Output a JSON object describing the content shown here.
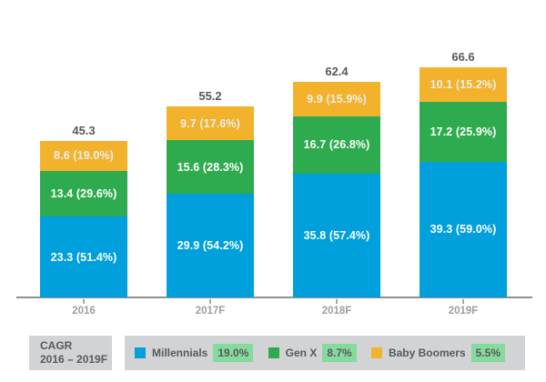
{
  "colors": {
    "millennials_blue": "#00A0DC",
    "gen_x_green": "#2EAB4E",
    "baby_boomers_amber": "#F3B22B",
    "cagr_highlight_green": "#85DA9D",
    "legend_background_gray": "#D2D3D4",
    "dark_text": "#58595B",
    "axis_text_gray": "#9C9EA1"
  },
  "chart_data": {
    "type": "bar",
    "stacked": true,
    "title": "",
    "categories": [
      "2016",
      "2017F",
      "2018F",
      "2019F"
    ],
    "totals": [
      "45.3",
      "55.2",
      "62.4",
      "66.6"
    ],
    "series": [
      {
        "name": "Millennials",
        "color": "#00A0DC",
        "label_color": "#FFFFFF",
        "values": [
          23.3,
          29.9,
          35.8,
          39.3
        ],
        "labels": [
          "23.3 (51.4%)",
          "29.9 (54.2%)",
          "35.8 (57.4%)",
          "39.3 (59.0%)"
        ]
      },
      {
        "name": "Gen X",
        "color": "#2EAB4E",
        "label_color": "#FFFFFF",
        "values": [
          13.4,
          15.6,
          16.7,
          17.2
        ],
        "labels": [
          "13.4 (29.6%)",
          "15.6 (28.3%)",
          "16.7 (26.8%)",
          "17.2 (25.9%)"
        ]
      },
      {
        "name": "Baby Boomers",
        "color": "#F3B22B",
        "label_color": "#EDEEEF",
        "values": [
          8.6,
          9.7,
          9.9,
          10.1
        ],
        "labels": [
          "8.6 (19.0%)",
          "9.7 (17.6%)",
          "9.9 (15.9%)",
          "10.1 (15.2%)"
        ]
      }
    ],
    "ylim": [
      0,
      70
    ],
    "grid": false,
    "legend_position": "bottom"
  },
  "legend": {
    "cagr_label": "CAGR",
    "cagr_period": "2016 – 2019F",
    "highlight_color": "#85DA9D",
    "background_color": "#D2D3D4",
    "items": [
      {
        "name": "Millennials",
        "cagr": "19.0%",
        "swatch_color": "#00A0DC"
      },
      {
        "name": "Gen X",
        "cagr": "8.7%",
        "swatch_color": "#2EAB4E"
      },
      {
        "name": "Baby Boomers",
        "cagr": "5.5%",
        "swatch_color": "#F3B22B"
      }
    ]
  }
}
